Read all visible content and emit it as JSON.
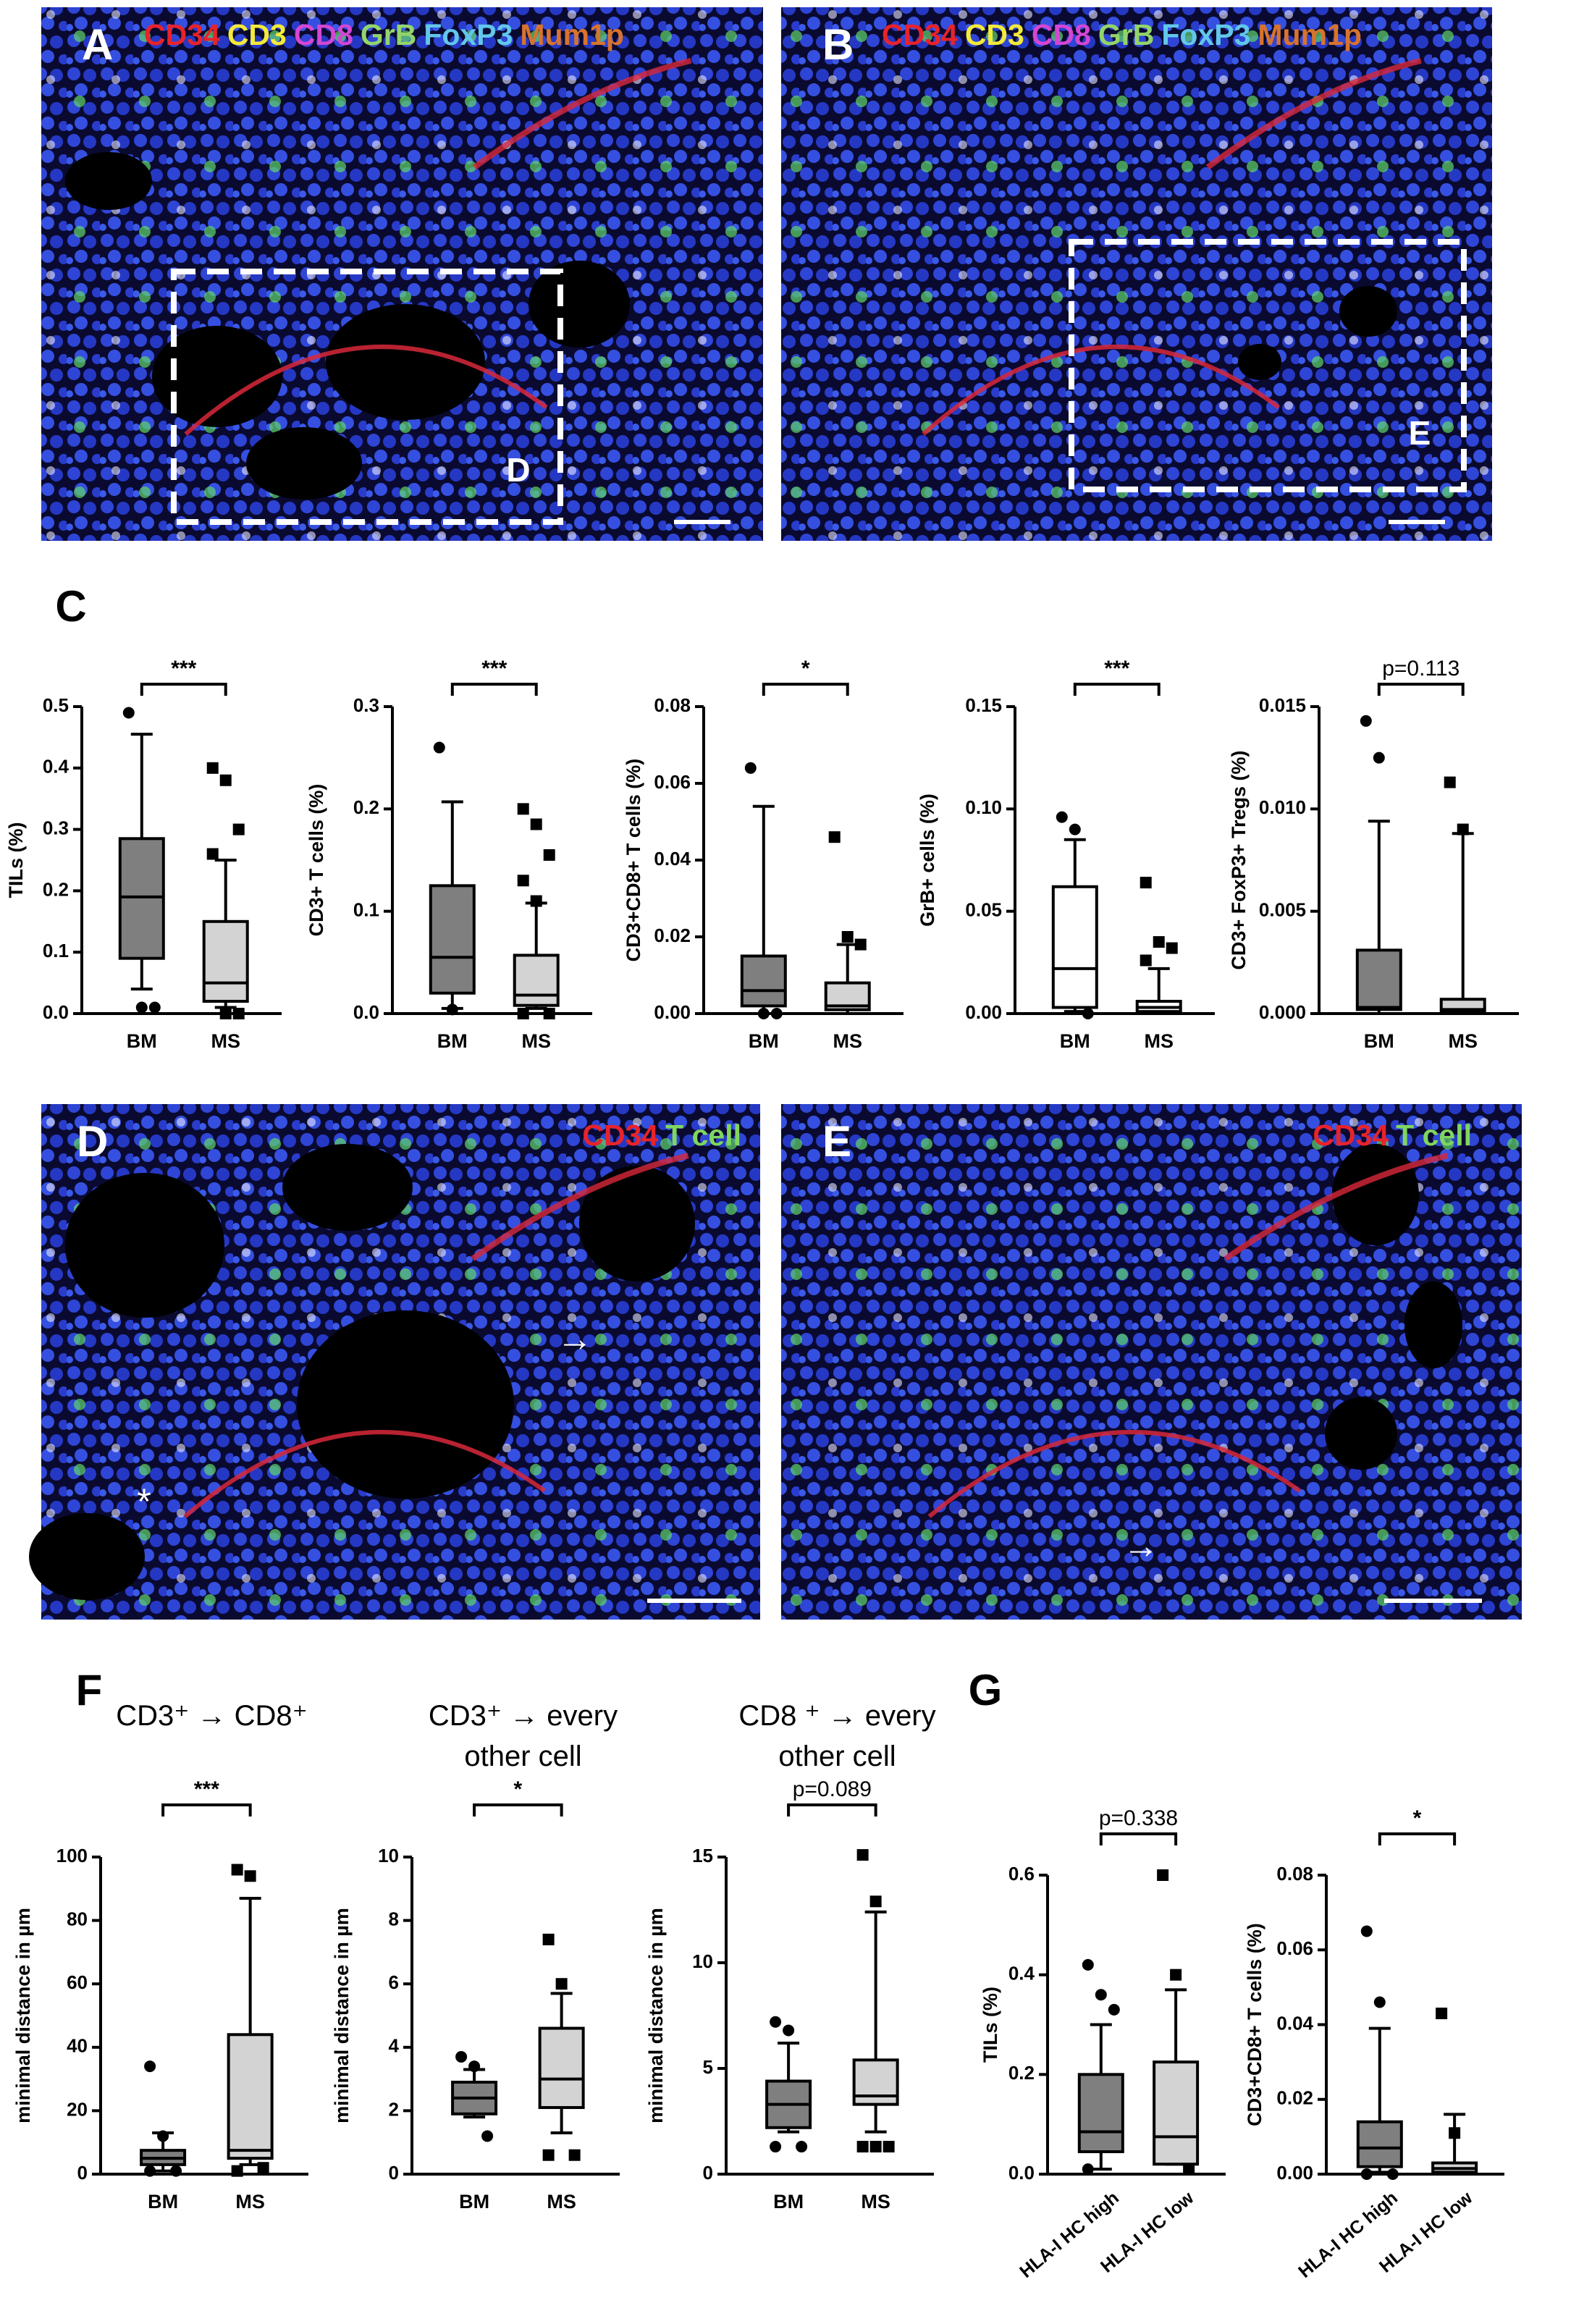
{
  "images": [
    {
      "letter": "A",
      "channels": [
        {
          "name": "CD34",
          "color": "#e8232b"
        },
        {
          "name": "CD3",
          "color": "#f3ea3a"
        },
        {
          "name": "CD8",
          "color": "#d446d4"
        },
        {
          "name": "GrB",
          "color": "#93d46b"
        },
        {
          "name": "FoxP3",
          "color": "#62c7ea"
        },
        {
          "name": "Mum1p",
          "color": "#d8732d"
        }
      ],
      "inset": "D"
    },
    {
      "letter": "B",
      "channels": [
        {
          "name": "CD34",
          "color": "#e8232b"
        },
        {
          "name": "CD3",
          "color": "#f3ea3a"
        },
        {
          "name": "CD8",
          "color": "#d446d4"
        },
        {
          "name": "GrB",
          "color": "#93d46b"
        },
        {
          "name": "FoxP3",
          "color": "#62c7ea"
        },
        {
          "name": "Mum1p",
          "color": "#d8732d"
        }
      ],
      "inset": "E"
    },
    {
      "letter": "D",
      "channels": [
        {
          "name": "CD34",
          "color": "#e8232b"
        },
        {
          "name": "T cell",
          "color": "#7fd65e"
        }
      ],
      "marks": [
        "→",
        "*"
      ]
    },
    {
      "letter": "E",
      "channels": [
        {
          "name": "CD34",
          "color": "#e8232b"
        },
        {
          "name": "T cell",
          "color": "#7fd65e"
        }
      ],
      "marks": [
        "→"
      ]
    }
  ],
  "panels": [
    "C",
    "F",
    "G"
  ],
  "chart_data": [
    {
      "type": "box",
      "ylabel": "TILs (%)",
      "significance": "***",
      "ylim": [
        0,
        0.5
      ],
      "yticks": [
        {
          "value": 0,
          "label": "0.0"
        },
        0.1,
        0.2,
        0.3,
        0.4,
        0.5
      ],
      "series": [
        {
          "name": "BM",
          "color": "#7f7f7f",
          "low": 0.04,
          "q1": 0.09,
          "median": 0.19,
          "q3": 0.285,
          "high": 0.455,
          "outliers": [
            0.49,
            0.01,
            0.01
          ]
        },
        {
          "name": "MS",
          "color": "#d3d3d3",
          "low": 0.01,
          "q1": 0.02,
          "median": 0.05,
          "q3": 0.15,
          "high": 0.25,
          "outliers": [
            0.4,
            0.38,
            0.3,
            0.26,
            0.0,
            0.0
          ]
        }
      ]
    },
    {
      "type": "box",
      "ylabel": "CD3+ T cells (%)",
      "significance": "***",
      "ylim": [
        0,
        0.3
      ],
      "yticks": [
        {
          "value": 0,
          "label": "0.0"
        },
        0.1,
        0.2,
        0.3
      ],
      "series": [
        {
          "name": "BM",
          "color": "#7f7f7f",
          "low": 0.005,
          "q1": 0.02,
          "median": 0.055,
          "q3": 0.125,
          "high": 0.207,
          "outliers": [
            0.26,
            0.004
          ]
        },
        {
          "name": "MS",
          "color": "#d3d3d3",
          "low": 0.005,
          "q1": 0.008,
          "median": 0.018,
          "q3": 0.057,
          "high": 0.108,
          "outliers": [
            0.2,
            0.185,
            0.155,
            0.13,
            0.11,
            0.0,
            0.0
          ]
        }
      ]
    },
    {
      "type": "box",
      "ylabel": "CD3+CD8+ T cells (%)",
      "significance": "*",
      "ylim": [
        0,
        0.08
      ],
      "yticks": [
        {
          "value": 0,
          "label": "0.00"
        },
        0.02,
        0.04,
        0.06,
        0.08
      ],
      "series": [
        {
          "name": "BM",
          "color": "#7f7f7f",
          "low": 0.0,
          "q1": 0.002,
          "median": 0.006,
          "q3": 0.015,
          "high": 0.054,
          "outliers": [
            0.064,
            0.0,
            0.0
          ]
        },
        {
          "name": "MS",
          "color": "#d3d3d3",
          "low": 0.0,
          "q1": 0.001,
          "median": 0.002,
          "q3": 0.008,
          "high": 0.018,
          "outliers": [
            0.046,
            0.02,
            0.018
          ]
        }
      ]
    },
    {
      "type": "box",
      "ylabel": "GrB+ cells (%)",
      "significance": "***",
      "ylim": [
        0,
        0.15
      ],
      "yticks": [
        {
          "value": 0,
          "label": "0.00"
        },
        0.05,
        {
          "value": 0.1,
          "label": "0.10"
        },
        0.15
      ],
      "series": [
        {
          "name": "BM",
          "color": "#ffffff",
          "low": 0.001,
          "q1": 0.003,
          "median": 0.022,
          "q3": 0.062,
          "high": 0.085,
          "outliers": [
            0.096,
            0.09,
            0.0
          ]
        },
        {
          "name": "MS",
          "color": "#ffffff",
          "low": 0.0,
          "q1": 0.001,
          "median": 0.003,
          "q3": 0.006,
          "high": 0.022,
          "outliers": [
            0.064,
            0.035,
            0.032,
            0.026
          ]
        }
      ]
    },
    {
      "type": "box",
      "ylabel": "CD3+ FoxP3+ Tregs (%)",
      "significance": "p=0.113",
      "ylim": [
        0,
        0.015
      ],
      "yticks": [
        {
          "value": 0,
          "label": "0.000"
        },
        0.005,
        {
          "value": 0.01,
          "label": "0.010"
        },
        0.015
      ],
      "series": [
        {
          "name": "BM",
          "color": "#7f7f7f",
          "low": 0.0,
          "q1": 0.0002,
          "median": 0.0003,
          "q3": 0.0031,
          "high": 0.0094,
          "outliers": [
            0.0143,
            0.0125
          ]
        },
        {
          "name": "MS",
          "color": "#d3d3d3",
          "low": 0.0,
          "q1": 0.0001,
          "median": 0.0002,
          "q3": 0.0007,
          "high": 0.0088,
          "outliers": [
            0.0113,
            0.009
          ]
        }
      ]
    },
    {
      "type": "box",
      "title": [
        "CD3⁺ → CD8⁺"
      ],
      "ylabel": "minimal distance in µm",
      "significance": "***",
      "ylim": [
        0,
        100
      ],
      "yticks": [
        0,
        20,
        40,
        60,
        80,
        100
      ],
      "series": [
        {
          "name": "BM",
          "color": "#7f7f7f",
          "low": 1,
          "q1": 3,
          "median": 5,
          "q3": 7.5,
          "high": 13,
          "outliers": [
            34,
            12,
            1,
            1
          ]
        },
        {
          "name": "MS",
          "color": "#d3d3d3",
          "low": 3,
          "q1": 5,
          "median": 7.5,
          "q3": 44,
          "high": 87,
          "outliers": [
            96,
            94,
            2,
            1
          ]
        }
      ]
    },
    {
      "type": "box",
      "title": [
        "CD3⁺ → every",
        "other cell"
      ],
      "ylabel": "minimal distance in µm",
      "significance": "*",
      "ylim": [
        0,
        10
      ],
      "yticks": [
        0,
        2,
        4,
        6,
        8,
        10
      ],
      "series": [
        {
          "name": "BM",
          "color": "#7f7f7f",
          "low": 1.8,
          "q1": 1.9,
          "median": 2.4,
          "q3": 2.9,
          "high": 3.3,
          "outliers": [
            3.7,
            3.4,
            1.2
          ]
        },
        {
          "name": "MS",
          "color": "#d3d3d3",
          "low": 1.3,
          "q1": 2.1,
          "median": 3.0,
          "q3": 4.6,
          "high": 5.7,
          "outliers": [
            7.4,
            6.0,
            0.6,
            0.6
          ]
        }
      ]
    },
    {
      "type": "box",
      "title": [
        "CD8 ⁺ → every",
        "other cell"
      ],
      "ylabel": "minimal distance in µm",
      "significance": "p=0.089",
      "ylim": [
        0,
        15
      ],
      "yticks": [
        0,
        5,
        10,
        15
      ],
      "series": [
        {
          "name": "BM",
          "color": "#7f7f7f",
          "low": 2,
          "q1": 2.2,
          "median": 3.3,
          "q3": 4.4,
          "high": 6.2,
          "outliers": [
            7.2,
            6.8,
            1.3,
            1.3
          ]
        },
        {
          "name": "MS",
          "color": "#d3d3d3",
          "low": 2,
          "q1": 3.3,
          "median": 3.7,
          "q3": 5.4,
          "high": 12.4,
          "outliers": [
            15.1,
            12.9,
            1.3,
            1.3,
            1.3
          ]
        }
      ]
    },
    {
      "type": "box",
      "ylabel": "TILs (%)",
      "significance": "p=0.338",
      "rotated_labels": true,
      "ylim": [
        0,
        0.6
      ],
      "yticks": [
        {
          "value": 0,
          "label": "0.0"
        },
        0.2,
        0.4,
        0.6
      ],
      "series": [
        {
          "name": "HLA-I HC high",
          "color": "#7f7f7f",
          "low": 0.01,
          "q1": 0.045,
          "median": 0.085,
          "q3": 0.2,
          "high": 0.3,
          "outliers": [
            0.42,
            0.36,
            0.33,
            0.01
          ]
        },
        {
          "name": "HLA-I HC low",
          "color": "#d3d3d3",
          "low": 0.02,
          "q1": 0.02,
          "median": 0.075,
          "q3": 0.225,
          "high": 0.37,
          "outliers": [
            0.6,
            0.4,
            0.01
          ]
        }
      ]
    },
    {
      "type": "box",
      "ylabel": "CD3+CD8+ T cells (%)",
      "significance": "*",
      "rotated_labels": true,
      "ylim": [
        0,
        0.08
      ],
      "yticks": [
        {
          "value": 0,
          "label": "0.00"
        },
        0.02,
        0.04,
        0.06,
        0.08
      ],
      "series": [
        {
          "name": "HLA-I HC high",
          "color": "#7f7f7f",
          "low": 0.0005,
          "q1": 0.002,
          "median": 0.007,
          "q3": 0.014,
          "high": 0.039,
          "outliers": [
            0.065,
            0.046,
            0.0,
            0.0
          ]
        },
        {
          "name": "HLA-I HC low",
          "color": "#d3d3d3",
          "low": 0.0,
          "q1": 0.0005,
          "median": 0.0015,
          "q3": 0.003,
          "high": 0.016,
          "outliers": [
            0.043,
            0.011
          ]
        }
      ]
    }
  ]
}
